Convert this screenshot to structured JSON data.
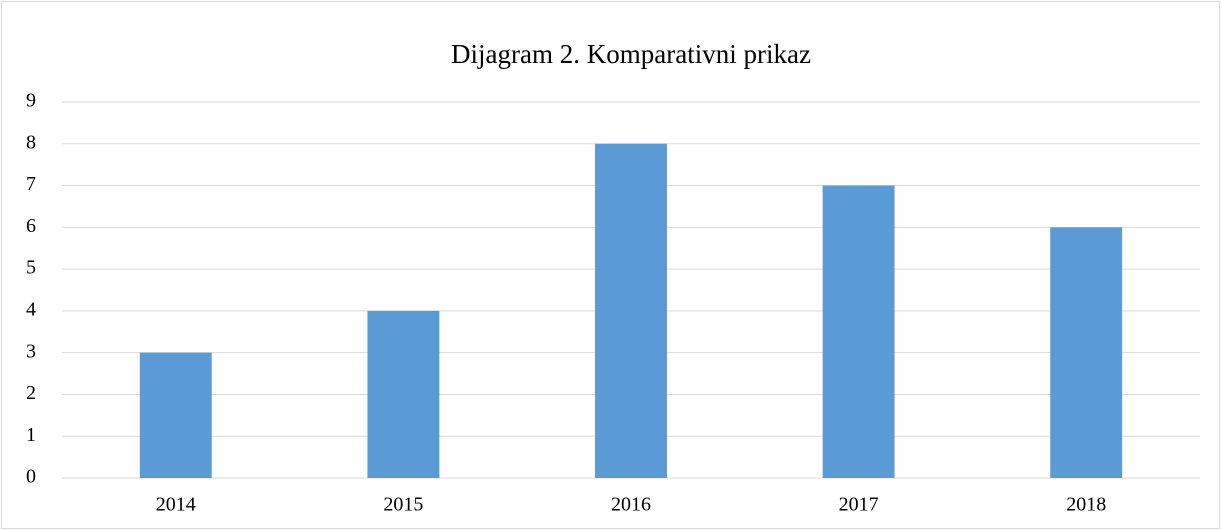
{
  "chart_data": {
    "type": "bar",
    "title": "Dijagram 2. Komparativni prikaz",
    "categories": [
      "2014",
      "2015",
      "2016",
      "2017",
      "2018"
    ],
    "values": [
      3,
      4,
      8,
      7,
      6
    ],
    "color": "#5b9bd5",
    "ylim": [
      0,
      9
    ],
    "yticks": [
      0,
      1,
      2,
      3,
      4,
      5,
      6,
      7,
      8,
      9
    ],
    "grid": true
  }
}
